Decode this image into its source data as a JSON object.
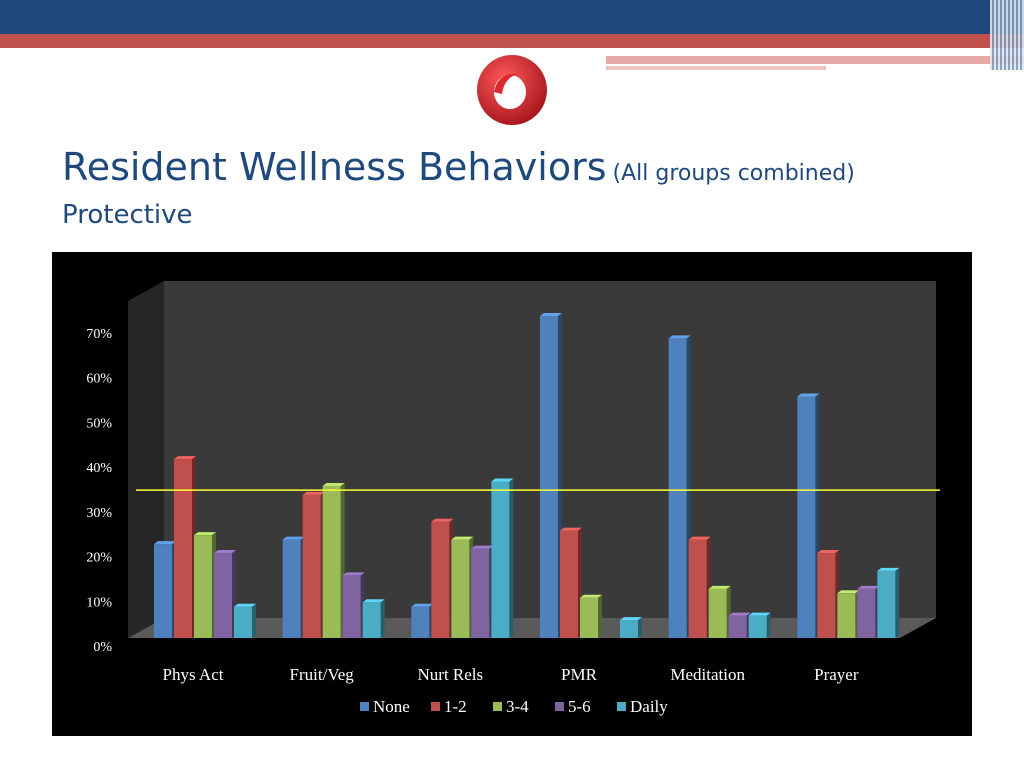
{
  "slide": {
    "title": "Resident Wellness Behaviors",
    "title_note": "(All groups combined)",
    "subtitle": "Protective"
  },
  "colors": {
    "header_blue": "#1f497d",
    "header_red": "#c0504d",
    "title_text": "#1f497d",
    "reference_line": "#ffff33"
  },
  "chart_data": {
    "type": "bar",
    "categories": [
      "Phys Act",
      "Fruit/Veg",
      "Nurt Rels",
      "PMR",
      "Meditation",
      "Prayer"
    ],
    "series": [
      {
        "name": "None",
        "color": "#4f81bd",
        "values": [
          21,
          22,
          7,
          72,
          67,
          54
        ]
      },
      {
        "name": "1-2",
        "color": "#c0504d",
        "values": [
          40,
          32,
          26,
          24,
          22,
          19
        ]
      },
      {
        "name": "3-4",
        "color": "#9bbb59",
        "values": [
          23,
          34,
          22,
          9,
          11,
          10
        ]
      },
      {
        "name": "5-6",
        "color": "#8064a2",
        "values": [
          19,
          14,
          20,
          0,
          5,
          11
        ]
      },
      {
        "name": "Daily",
        "color": "#4bacc6",
        "values": [
          7,
          8,
          35,
          4,
          5,
          15
        ]
      }
    ],
    "y_ticks": [
      "0%",
      "10%",
      "20%",
      "30%",
      "40%",
      "50%",
      "60%",
      "70%"
    ],
    "ylim": [
      0,
      70
    ],
    "reference_value": 38,
    "legend_position": "bottom",
    "style": "3d-column",
    "background": "#000000"
  }
}
